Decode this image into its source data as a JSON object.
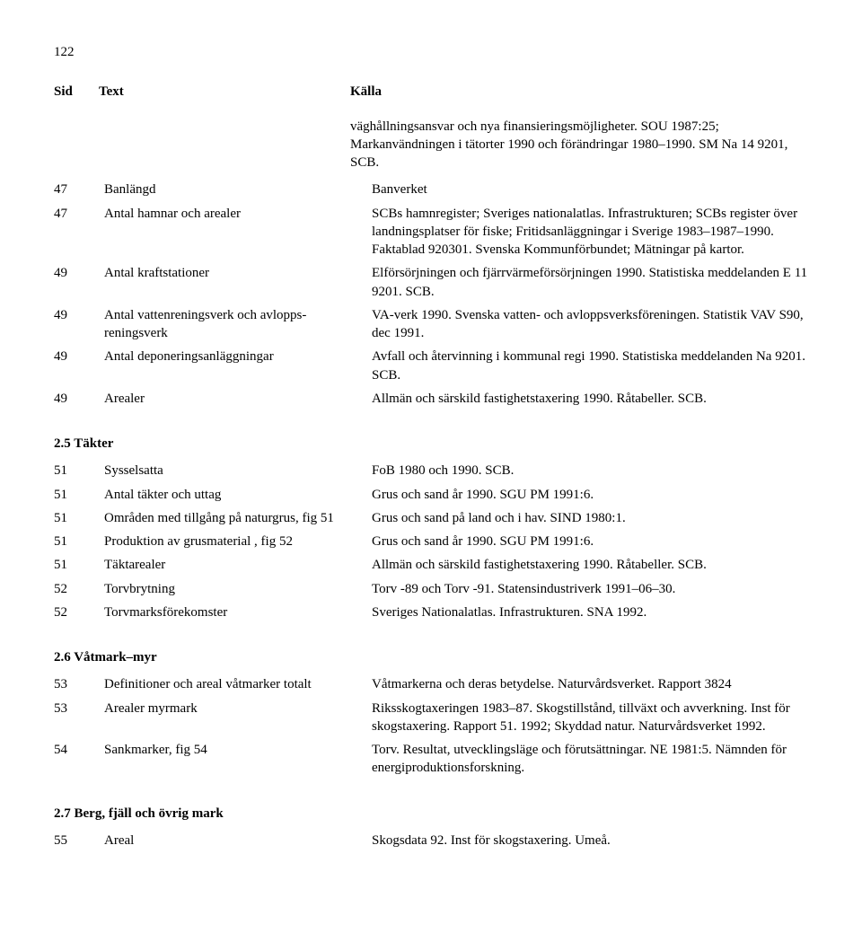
{
  "page_number": "122",
  "headers": {
    "sid": "Sid",
    "text": "Text",
    "kalla": "Källa"
  },
  "intro": "väghållningsansvar och nya finansieringsmöjligheter. SOU 1987:25; Markanvändningen i tätorter 1990 och förändringar 1980–1990. SM Na 14 9201, SCB.",
  "rows1": [
    {
      "sid": "47",
      "text": "Banlängd",
      "kalla": "Banverket"
    },
    {
      "sid": "47",
      "text": "Antal hamnar och arealer",
      "kalla": "SCBs hamnregister; Sveriges nationalatlas. Infrastrukturen; SCBs register över landningsplatser för fiske; Fritidsanläggningar i Sverige 1983–1987–1990. Faktablad 920301. Svenska Kommunförbundet; Mätningar på kartor."
    },
    {
      "sid": "49",
      "text": "Antal kraftstationer",
      "kalla": "Elförsörjningen och fjärrvärmeförsörjningen 1990. Statistiska meddelanden E 11 9201. SCB."
    },
    {
      "sid": "49",
      "text": "Antal vattenreningsverk och avlopps-reningsverk",
      "kalla": "VA-verk 1990. Svenska vatten- och avloppsverksföreningen. Statistik VAV S90, dec 1991."
    },
    {
      "sid": "49",
      "text": "Antal deponeringsanläggningar",
      "kalla": "Avfall och återvinning i kommunal regi 1990. Statistiska meddelanden Na 9201. SCB."
    },
    {
      "sid": "49",
      "text": "Arealer",
      "kalla": "Allmän och särskild fastighetstaxering 1990. Råtabeller. SCB."
    }
  ],
  "section_takter": "2.5  Täkter",
  "rows_takter": [
    {
      "sid": "51",
      "text": "Sysselsatta",
      "kalla": "FoB 1980 och 1990. SCB."
    },
    {
      "sid": "51",
      "text": "Antal täkter och uttag",
      "kalla": "Grus och sand år 1990. SGU PM 1991:6."
    },
    {
      "sid": "51",
      "text": "Områden med tillgång på naturgrus, fig 51",
      "kalla": "Grus och sand på land och i hav. SIND 1980:1."
    },
    {
      "sid": "51",
      "text": "Produktion av grusmaterial , fig 52",
      "kalla": "Grus och sand år 1990. SGU PM 1991:6."
    },
    {
      "sid": "51",
      "text": "Täktarealer",
      "kalla": "Allmän och särskild fastighetstaxering 1990. Råtabeller. SCB."
    },
    {
      "sid": "52",
      "text": "Torvbrytning",
      "kalla": "Torv -89 och Torv -91. Statensindustriverk 1991–06–30."
    },
    {
      "sid": "52",
      "text": "Torvmarksförekomster",
      "kalla": "Sveriges Nationalatlas. Infrastrukturen. SNA 1992."
    }
  ],
  "section_vatmark": "2.6  Våtmark–myr",
  "rows_vatmark": [
    {
      "sid": "53",
      "text": "Definitioner och areal våtmarker totalt",
      "kalla": "Våtmarkerna och deras betydelse. Naturvårdsverket. Rapport 3824"
    },
    {
      "sid": "53",
      "text": "Arealer myrmark",
      "kalla": "Riksskogtaxeringen 1983–87. Skogstillstånd, tillväxt och avverkning. Inst för skogstaxering. Rapport 51. 1992; Skyddad natur. Naturvårdsverket 1992."
    },
    {
      "sid": "54",
      "text": "Sankmarker, fig 54",
      "kalla": "Torv. Resultat, utvecklingsläge och förutsättningar. NE 1981:5. Nämnden för energiproduktionsforskning."
    }
  ],
  "section_berg": "2.7  Berg, fjäll och övrig mark",
  "rows_berg": [
    {
      "sid": "55",
      "text": "Areal",
      "kalla": "Skogsdata 92. Inst för skogstaxering. Umeå."
    }
  ]
}
